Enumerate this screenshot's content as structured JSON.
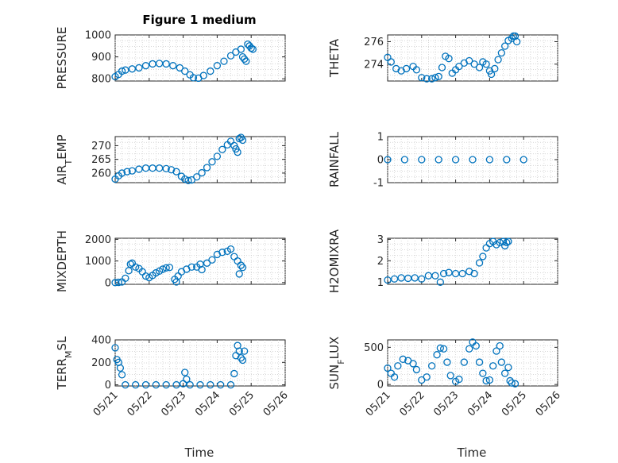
{
  "figure": {
    "title": "Figure 1 medium",
    "colors": {
      "marker": "#0072bd",
      "axis": "#262626",
      "grid": "#c9c9c9"
    }
  },
  "chart_data": [
    {
      "type": "scatter",
      "ylabel": "PRESSURE",
      "ylim": [
        790,
        1000
      ],
      "yticks": [
        800,
        900,
        1000
      ],
      "xlim": [
        "05/21",
        "05/26"
      ],
      "xticklabels": [
        "05/21",
        "05/22",
        "05/23",
        "05/24",
        "05/25",
        "05/26"
      ],
      "grid": true,
      "points": [
        [
          0,
          810
        ],
        [
          0.1,
          820
        ],
        [
          0.2,
          835
        ],
        [
          0.3,
          840
        ],
        [
          0.5,
          845
        ],
        [
          0.7,
          850
        ],
        [
          0.9,
          860
        ],
        [
          1.1,
          868
        ],
        [
          1.3,
          870
        ],
        [
          1.5,
          868
        ],
        [
          1.7,
          860
        ],
        [
          1.9,
          850
        ],
        [
          2.05,
          835
        ],
        [
          2.2,
          818
        ],
        [
          2.3,
          805
        ],
        [
          2.45,
          803
        ],
        [
          2.6,
          815
        ],
        [
          2.8,
          835
        ],
        [
          3.0,
          860
        ],
        [
          3.2,
          880
        ],
        [
          3.4,
          905
        ],
        [
          3.55,
          922
        ],
        [
          3.7,
          935
        ],
        [
          3.75,
          900
        ],
        [
          3.8,
          890
        ],
        [
          3.85,
          880
        ],
        [
          3.9,
          958
        ],
        [
          3.95,
          950
        ],
        [
          4.0,
          940
        ],
        [
          4.05,
          935
        ]
      ]
    },
    {
      "type": "scatter",
      "ylabel": "THETA",
      "ylim": [
        272.5,
        276.6
      ],
      "yticks": [
        274,
        276
      ],
      "xlim": [
        "05/21",
        "05/26"
      ],
      "xticklabels": [
        "05/21",
        "05/22",
        "05/23",
        "05/24",
        "05/25",
        "05/26"
      ],
      "grid": true,
      "points": [
        [
          0,
          274.6
        ],
        [
          0.1,
          274.2
        ],
        [
          0.25,
          273.6
        ],
        [
          0.4,
          273.4
        ],
        [
          0.55,
          273.6
        ],
        [
          0.75,
          273.8
        ],
        [
          0.85,
          273.5
        ],
        [
          1.0,
          272.8
        ],
        [
          1.15,
          272.7
        ],
        [
          1.3,
          272.7
        ],
        [
          1.4,
          272.8
        ],
        [
          1.5,
          272.9
        ],
        [
          1.6,
          273.7
        ],
        [
          1.7,
          274.7
        ],
        [
          1.8,
          274.5
        ],
        [
          1.9,
          273.2
        ],
        [
          2.0,
          273.5
        ],
        [
          2.1,
          273.8
        ],
        [
          2.25,
          274.1
        ],
        [
          2.4,
          274.3
        ],
        [
          2.55,
          274.0
        ],
        [
          2.7,
          273.7
        ],
        [
          2.8,
          274.2
        ],
        [
          2.9,
          274.0
        ],
        [
          3.0,
          273.4
        ],
        [
          3.05,
          273.1
        ],
        [
          3.15,
          273.6
        ],
        [
          3.25,
          274.4
        ],
        [
          3.35,
          275.0
        ],
        [
          3.45,
          275.6
        ],
        [
          3.55,
          276.1
        ],
        [
          3.65,
          276.3
        ],
        [
          3.7,
          276.5
        ],
        [
          3.75,
          276.5
        ],
        [
          3.8,
          276.0
        ]
      ]
    },
    {
      "type": "scatter",
      "ylabel": "AIR_TEMP",
      "ylim": [
        256.5,
        273.3
      ],
      "yticks": [
        260,
        265,
        270
      ],
      "xlim": [
        "05/21",
        "05/26"
      ],
      "xticklabels": [
        "05/21",
        "05/22",
        "05/23",
        "05/24",
        "05/25",
        "05/26"
      ],
      "grid": true,
      "points": [
        [
          0,
          257.8
        ],
        [
          0.1,
          259.0
        ],
        [
          0.2,
          260.0
        ],
        [
          0.35,
          260.5
        ],
        [
          0.5,
          260.8
        ],
        [
          0.7,
          261.4
        ],
        [
          0.9,
          261.8
        ],
        [
          1.1,
          261.8
        ],
        [
          1.3,
          261.8
        ],
        [
          1.5,
          261.6
        ],
        [
          1.65,
          261.2
        ],
        [
          1.8,
          260.5
        ],
        [
          1.95,
          258.8
        ],
        [
          2.05,
          257.8
        ],
        [
          2.15,
          257.3
        ],
        [
          2.25,
          257.5
        ],
        [
          2.4,
          258.6
        ],
        [
          2.55,
          260.1
        ],
        [
          2.7,
          262.0
        ],
        [
          2.85,
          264.1
        ],
        [
          3.0,
          266.1
        ],
        [
          3.15,
          268.6
        ],
        [
          3.3,
          270.3
        ],
        [
          3.4,
          271.6
        ],
        [
          3.5,
          270.0
        ],
        [
          3.55,
          268.8
        ],
        [
          3.6,
          267.6
        ],
        [
          3.65,
          272.6
        ],
        [
          3.7,
          273.0
        ],
        [
          3.75,
          272.0
        ]
      ]
    },
    {
      "type": "scatter",
      "ylabel": "RAINFALL",
      "ylim": [
        -1,
        1
      ],
      "yticks": [
        -1,
        0,
        1
      ],
      "xlim": [
        "05/21",
        "05/26"
      ],
      "xticklabels": [
        "05/21",
        "05/22",
        "05/23",
        "05/24",
        "05/25",
        "05/26"
      ],
      "grid": true,
      "points": [
        [
          0,
          0
        ],
        [
          0.5,
          0
        ],
        [
          1.0,
          0
        ],
        [
          1.5,
          0
        ],
        [
          2.0,
          0
        ],
        [
          2.5,
          0
        ],
        [
          3.0,
          0
        ],
        [
          3.5,
          0
        ],
        [
          4.0,
          0
        ]
      ]
    },
    {
      "type": "scatter",
      "ylabel": "MIXDEPTH",
      "ylim": [
        -80,
        2050
      ],
      "yticks": [
        0,
        1000,
        2000
      ],
      "xlim": [
        "05/21",
        "05/26"
      ],
      "xticklabels": [
        "05/21",
        "05/22",
        "05/23",
        "05/24",
        "05/25",
        "05/26"
      ],
      "grid": true,
      "points": [
        [
          0,
          0
        ],
        [
          0.1,
          10
        ],
        [
          0.2,
          30
        ],
        [
          0.3,
          200
        ],
        [
          0.4,
          550
        ],
        [
          0.45,
          850
        ],
        [
          0.5,
          900
        ],
        [
          0.6,
          720
        ],
        [
          0.7,
          650
        ],
        [
          0.8,
          500
        ],
        [
          0.9,
          300
        ],
        [
          1.0,
          230
        ],
        [
          1.1,
          330
        ],
        [
          1.2,
          450
        ],
        [
          1.3,
          530
        ],
        [
          1.4,
          620
        ],
        [
          1.5,
          680
        ],
        [
          1.6,
          700
        ],
        [
          1.75,
          150
        ],
        [
          1.8,
          30
        ],
        [
          1.85,
          300
        ],
        [
          1.95,
          500
        ],
        [
          2.1,
          620
        ],
        [
          2.25,
          720
        ],
        [
          2.4,
          720
        ],
        [
          2.5,
          850
        ],
        [
          2.55,
          600
        ],
        [
          2.7,
          900
        ],
        [
          2.85,
          1050
        ],
        [
          3.0,
          1300
        ],
        [
          3.15,
          1400
        ],
        [
          3.3,
          1450
        ],
        [
          3.4,
          1550
        ],
        [
          3.5,
          1200
        ],
        [
          3.6,
          1000
        ],
        [
          3.65,
          400
        ],
        [
          3.7,
          800
        ],
        [
          3.75,
          700
        ]
      ]
    },
    {
      "type": "scatter",
      "ylabel": "H2OMIXRA",
      "ylim": [
        0.9,
        3.05
      ],
      "yticks": [
        1,
        2,
        3
      ],
      "xlim": [
        "05/21",
        "05/26"
      ],
      "xticklabels": [
        "05/21",
        "05/22",
        "05/23",
        "05/24",
        "05/25",
        "05/26"
      ],
      "grid": true,
      "points": [
        [
          0,
          1.1
        ],
        [
          0.2,
          1.15
        ],
        [
          0.4,
          1.2
        ],
        [
          0.6,
          1.18
        ],
        [
          0.8,
          1.2
        ],
        [
          1.0,
          1.15
        ],
        [
          1.2,
          1.3
        ],
        [
          1.4,
          1.3
        ],
        [
          1.55,
          1.0
        ],
        [
          1.65,
          1.4
        ],
        [
          1.8,
          1.45
        ],
        [
          2.0,
          1.4
        ],
        [
          2.2,
          1.4
        ],
        [
          2.4,
          1.5
        ],
        [
          2.55,
          1.4
        ],
        [
          2.7,
          1.9
        ],
        [
          2.8,
          2.2
        ],
        [
          2.9,
          2.6
        ],
        [
          3.0,
          2.8
        ],
        [
          3.1,
          2.9
        ],
        [
          3.2,
          2.75
        ],
        [
          3.3,
          2.85
        ],
        [
          3.4,
          2.9
        ],
        [
          3.45,
          2.7
        ],
        [
          3.5,
          2.85
        ],
        [
          3.55,
          2.9
        ]
      ]
    },
    {
      "type": "scatter",
      "ylabel": "TERR_MSL",
      "ylim": [
        -10,
        400
      ],
      "yticks": [
        0,
        200,
        400
      ],
      "xlim": [
        "05/21",
        "05/26"
      ],
      "xticklabels": [
        "05/21",
        "05/22",
        "05/23",
        "05/24",
        "05/25",
        "05/26"
      ],
      "grid": true,
      "points": [
        [
          0,
          330
        ],
        [
          0.05,
          225
        ],
        [
          0.1,
          200
        ],
        [
          0.15,
          150
        ],
        [
          0.2,
          90
        ],
        [
          0.3,
          0
        ],
        [
          0.6,
          0
        ],
        [
          0.9,
          0
        ],
        [
          1.2,
          0
        ],
        [
          1.5,
          0
        ],
        [
          1.8,
          0
        ],
        [
          2.0,
          10
        ],
        [
          2.05,
          110
        ],
        [
          2.1,
          50
        ],
        [
          2.2,
          0
        ],
        [
          2.5,
          0
        ],
        [
          2.8,
          0
        ],
        [
          3.1,
          0
        ],
        [
          3.4,
          0
        ],
        [
          3.5,
          100
        ],
        [
          3.55,
          260
        ],
        [
          3.6,
          350
        ],
        [
          3.65,
          300
        ],
        [
          3.7,
          240
        ],
        [
          3.75,
          220
        ],
        [
          3.8,
          300
        ]
      ]
    },
    {
      "type": "scatter",
      "ylabel": "SUN_FLUX",
      "ylim": [
        -20,
        600
      ],
      "yticks": [
        0,
        500
      ],
      "xlim": [
        "05/21",
        "05/26"
      ],
      "xticklabels": [
        "05/21",
        "05/22",
        "05/23",
        "05/24",
        "05/25",
        "05/26"
      ],
      "grid": true,
      "points": [
        [
          0,
          220
        ],
        [
          0.1,
          150
        ],
        [
          0.2,
          100
        ],
        [
          0.3,
          250
        ],
        [
          0.45,
          340
        ],
        [
          0.6,
          320
        ],
        [
          0.75,
          280
        ],
        [
          0.85,
          200
        ],
        [
          1.0,
          60
        ],
        [
          1.15,
          100
        ],
        [
          1.3,
          250
        ],
        [
          1.45,
          400
        ],
        [
          1.55,
          490
        ],
        [
          1.65,
          480
        ],
        [
          1.75,
          300
        ],
        [
          1.85,
          120
        ],
        [
          2.0,
          40
        ],
        [
          2.1,
          70
        ],
        [
          2.25,
          300
        ],
        [
          2.4,
          480
        ],
        [
          2.5,
          570
        ],
        [
          2.6,
          520
        ],
        [
          2.7,
          300
        ],
        [
          2.8,
          150
        ],
        [
          2.9,
          50
        ],
        [
          3.0,
          60
        ],
        [
          3.1,
          250
        ],
        [
          3.2,
          450
        ],
        [
          3.3,
          520
        ],
        [
          3.35,
          300
        ],
        [
          3.45,
          150
        ],
        [
          3.55,
          230
        ],
        [
          3.6,
          50
        ],
        [
          3.65,
          20
        ],
        [
          3.75,
          10
        ]
      ]
    }
  ],
  "xlabel": "Time"
}
